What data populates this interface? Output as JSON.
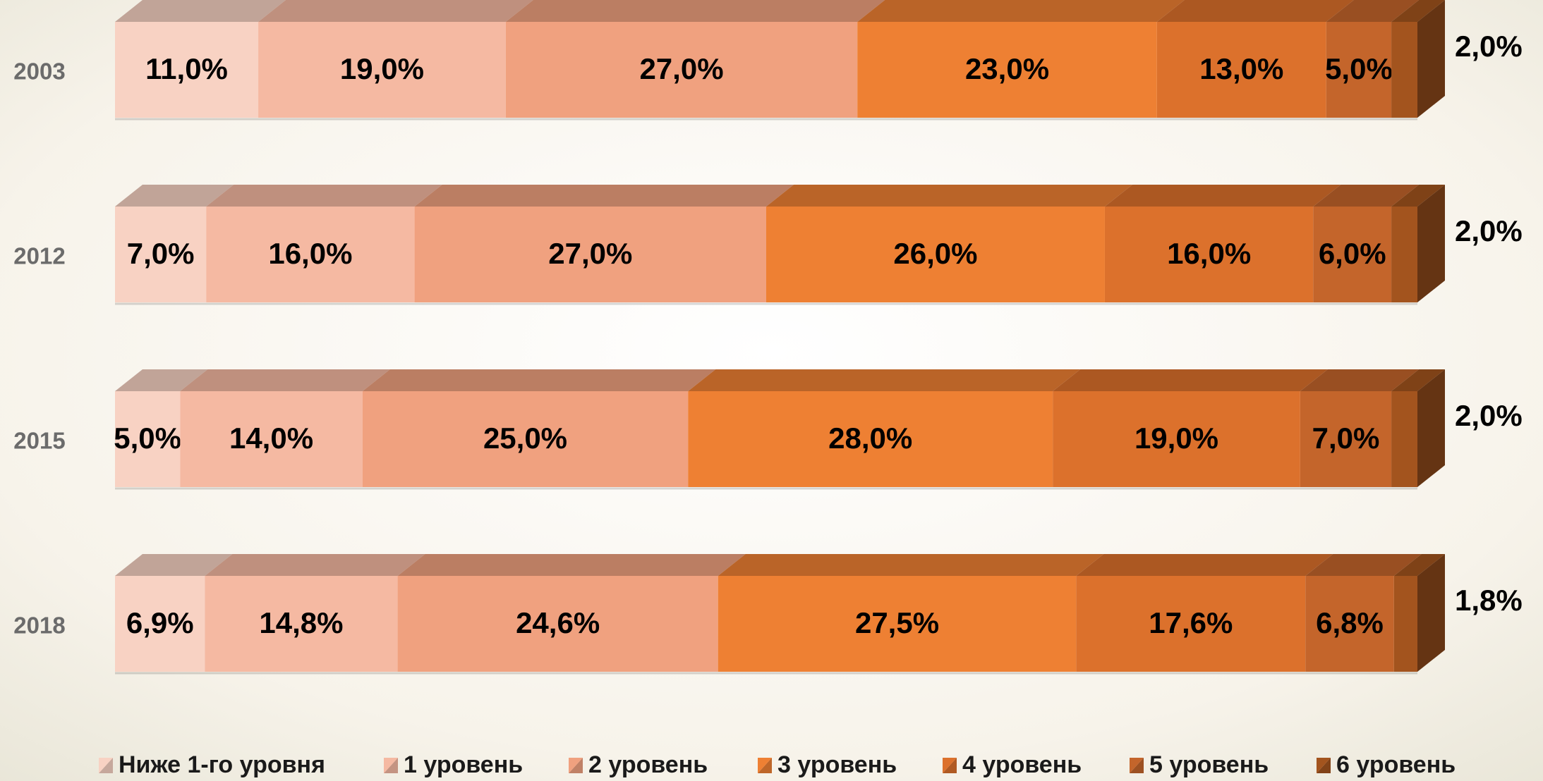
{
  "chart_data": {
    "type": "stacked_bar_3d",
    "categories": [
      "2003",
      "2012",
      "2015",
      "2018"
    ],
    "xlim": [
      0,
      100
    ],
    "legend": "bottom",
    "series": [
      {
        "name": "Ниже 1-го уровня",
        "color": "#f8d2c3",
        "values": [
          11,
          7,
          5,
          6.9
        ],
        "value_labels": [
          "11,0%",
          "7,0%",
          "5,0%",
          "6,9%"
        ]
      },
      {
        "name": "1 уровень",
        "color": "#f5b9a2",
        "values": [
          19,
          16,
          14,
          14.8
        ],
        "value_labels": [
          "19,0%",
          "16,0%",
          "14,0%",
          "14,8%"
        ]
      },
      {
        "name": "2 уровень",
        "color": "#f0a17f",
        "values": [
          27,
          27,
          25,
          24.6
        ],
        "value_labels": [
          "27,0%",
          "27,0%",
          "25,0%",
          "24,6%"
        ]
      },
      {
        "name": "3 уровень",
        "color": "#ee8033",
        "values": [
          23,
          26,
          28,
          27.5
        ],
        "value_labels": [
          "23,0%",
          "26,0%",
          "28,0%",
          "27,5%"
        ]
      },
      {
        "name": "4 уровень",
        "color": "#dc712c",
        "values": [
          13,
          16,
          19,
          17.6
        ],
        "value_labels": [
          "13,0%",
          "16,0%",
          "19,0%",
          "17,6%"
        ]
      },
      {
        "name": "5 уровень",
        "color": "#c4652b",
        "values": [
          5,
          6,
          7,
          6.8
        ],
        "value_labels": [
          "5,0%",
          "6,0%",
          "7,0%",
          "6,8%"
        ]
      },
      {
        "name": "6 уровень",
        "color": "#a3541e",
        "values": [
          2,
          2,
          2,
          1.8
        ],
        "value_labels": [
          "2,0%",
          "2,0%",
          "2,0%",
          "1,8%"
        ]
      }
    ]
  }
}
